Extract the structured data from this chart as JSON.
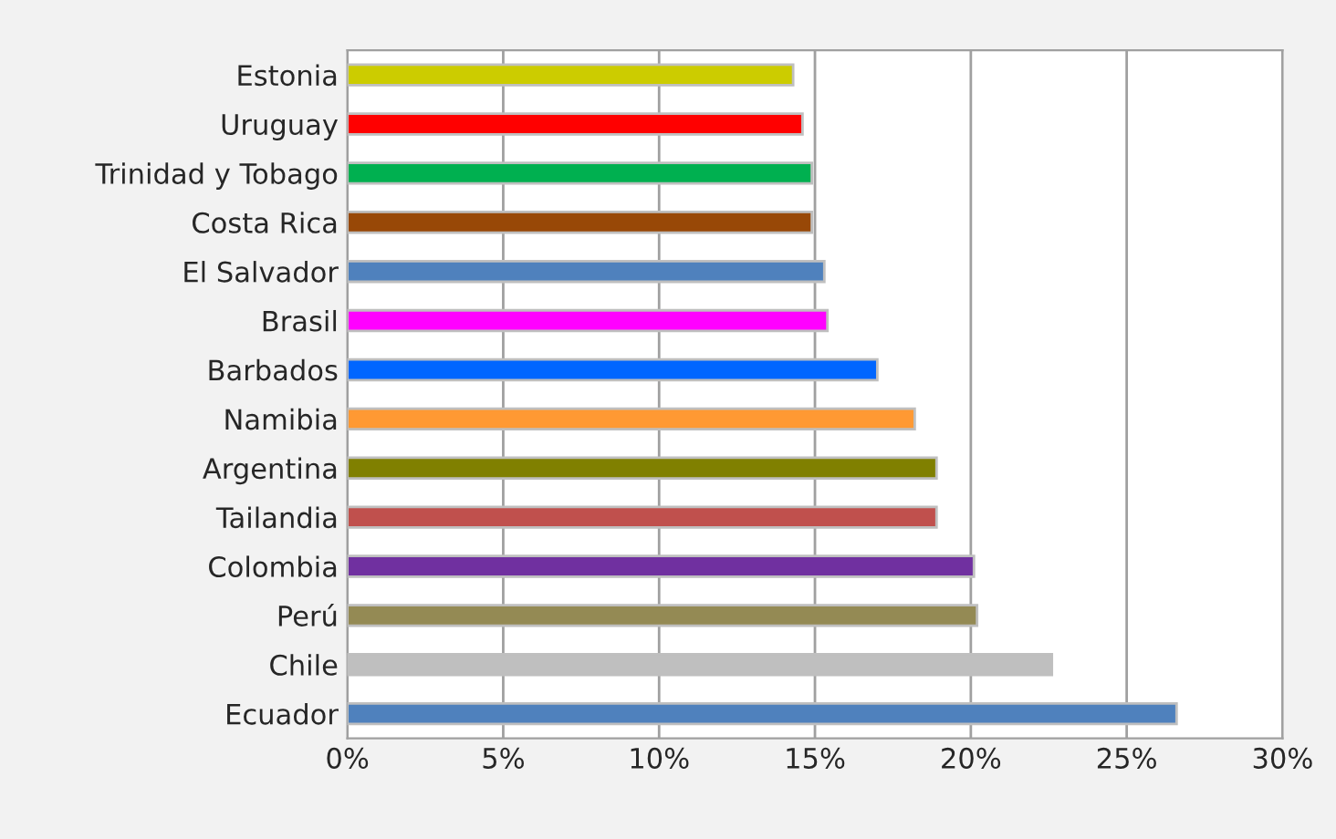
{
  "chart_data": {
    "type": "bar",
    "orientation": "horizontal",
    "categories": [
      "Estonia",
      "Uruguay",
      "Trinidad y Tobago",
      "Costa Rica",
      "El Salvador",
      "Brasil",
      "Barbados",
      "Namibia",
      "Argentina",
      "Tailandia",
      "Colombia",
      "Perú",
      "Chile",
      "Ecuador"
    ],
    "values": [
      14.3,
      14.6,
      14.9,
      14.9,
      15.3,
      15.4,
      17.0,
      18.2,
      18.9,
      18.9,
      20.1,
      20.2,
      22.6,
      26.6
    ],
    "colors": [
      "#cccc00",
      "#ff0000",
      "#00b050",
      "#984807",
      "#4f81bd",
      "#ff00ff",
      "#0066ff",
      "#ff9933",
      "#808000",
      "#c0504d",
      "#7030a0",
      "#948a54",
      "#bfbfbf",
      "#4f81bd"
    ],
    "xlim": [
      0,
      30
    ],
    "xticks": [
      {
        "value": 0,
        "label": "0%"
      },
      {
        "value": 5,
        "label": "5%"
      },
      {
        "value": 10,
        "label": "10%"
      },
      {
        "value": 15,
        "label": "15%"
      },
      {
        "value": 20,
        "label": "20%"
      },
      {
        "value": 25,
        "label": "25%"
      },
      {
        "value": 30,
        "label": "30%"
      }
    ],
    "grid": "x"
  }
}
